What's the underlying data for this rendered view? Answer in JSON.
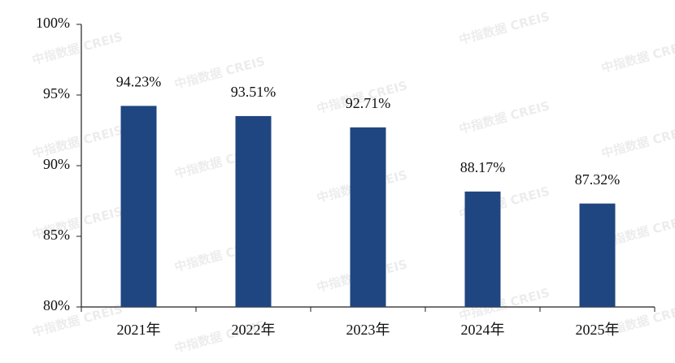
{
  "chart_data": {
    "type": "bar",
    "categories": [
      "2021年",
      "2022年",
      "2023年",
      "2024年",
      "2025年"
    ],
    "values": [
      94.23,
      93.51,
      92.71,
      88.17,
      87.32
    ],
    "value_labels": [
      "94.23%",
      "93.51%",
      "92.71%",
      "88.17%",
      "87.32%"
    ],
    "color": "#1f4680",
    "ylim": [
      80,
      100
    ],
    "yticks": [
      {
        "value": 80,
        "label": "80%"
      },
      {
        "value": 85,
        "label": "85%"
      },
      {
        "value": 90,
        "label": "90%"
      },
      {
        "value": 95,
        "label": "95%"
      },
      {
        "value": 100,
        "label": "100%"
      }
    ],
    "watermark": "中指数据 CREIS"
  }
}
